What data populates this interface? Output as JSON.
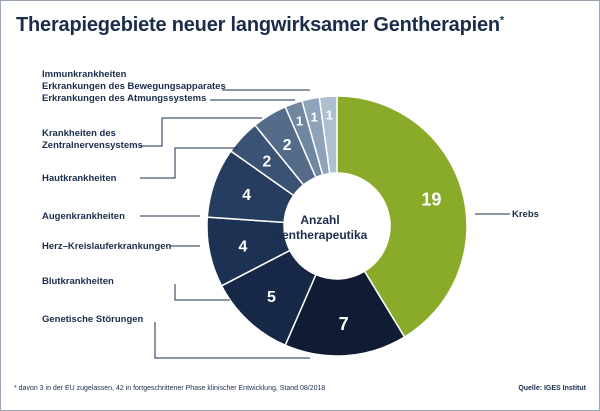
{
  "title": "Therapiegebiete neuer langwirksamer Gentherapien",
  "title_mark": "*",
  "footnote": "* davon 3 in der EU zugelassen, 42 in fortgeschrittener Phase klinischer Entwicklung, Stand 08/2018",
  "source": "Quelle: IGES Institut",
  "chart_data": {
    "type": "pie",
    "donut": true,
    "center_label": [
      "Anzahl",
      "Gentherapeutika"
    ],
    "slices": [
      {
        "label": "Krebs",
        "value": 19,
        "color": "#8aaa2a"
      },
      {
        "label": "Genetische Störungen",
        "value": 7,
        "color": "#101c33"
      },
      {
        "label": "Blutkrankheiten",
        "value": 5,
        "color": "#162846"
      },
      {
        "label": "Herz–Kreislauferkrankungen",
        "value": 4,
        "color": "#1d3253"
      },
      {
        "label": "Augenkrankheiten",
        "value": 4,
        "color": "#263d60"
      },
      {
        "label": "Hautkrankheiten",
        "value": 2,
        "color": "#3a5273"
      },
      {
        "label": "Krankheiten des Zentralnervensystems",
        "value": 2,
        "color": "#546b8a"
      },
      {
        "label": "Erkrankungen des Atmungssystems",
        "value": 1,
        "color": "#7087a2"
      },
      {
        "label": "Erkrankungen des Bewegungsapparates",
        "value": 1,
        "color": "#8ea3ba"
      },
      {
        "label": "Immunkrankheiten",
        "value": 1,
        "color": "#aebfd0"
      }
    ]
  }
}
